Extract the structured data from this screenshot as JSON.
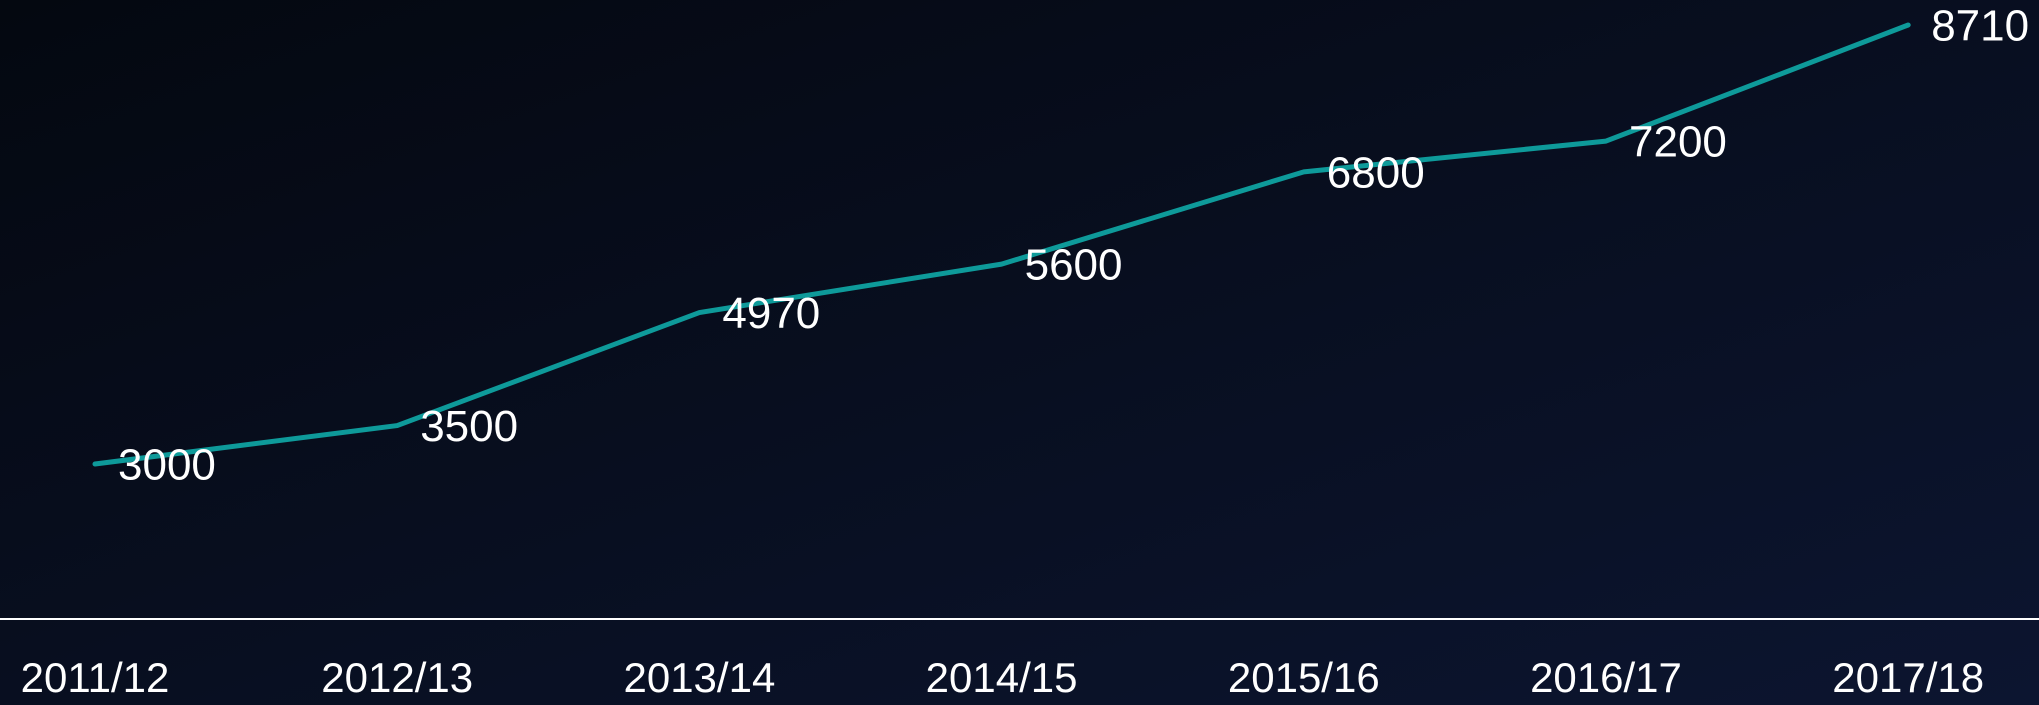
{
  "chart_data": {
    "type": "line",
    "categories": [
      "2011/12",
      "2012/13",
      "2013/14",
      "2014/15",
      "2015/16",
      "2016/17",
      "2017/18"
    ],
    "values": [
      3000,
      3500,
      4970,
      5600,
      6800,
      7200,
      8710
    ],
    "color": "#0e9a9a"
  }
}
